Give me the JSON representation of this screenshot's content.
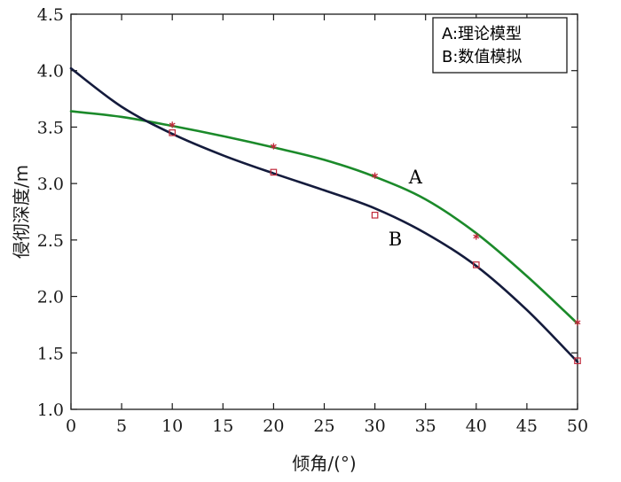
{
  "chart_data": {
    "type": "line",
    "xlabel": "倾角/(°)",
    "ylabel": "侵彻深度/m",
    "xlim": [
      0,
      50
    ],
    "ylim": [
      1.0,
      4.5
    ],
    "x_ticks": [
      "0",
      "5",
      "10",
      "15",
      "20",
      "25",
      "30",
      "35",
      "40",
      "45",
      "50"
    ],
    "y_ticks": [
      "1.0",
      "1.5",
      "2.0",
      "2.5",
      "3.0",
      "3.5",
      "4.0",
      "4.5"
    ],
    "grid": false,
    "legend_position": "top-right",
    "legend": [
      "A:理论模型",
      "B:数值模拟"
    ],
    "series": [
      {
        "name": "A",
        "color": "#1b8a2a",
        "marker": "asterisk",
        "marker_color": "#c0283a",
        "x": [
          0,
          5,
          10,
          15,
          20,
          25,
          30,
          35,
          40,
          45,
          50
        ],
        "values": [
          3.64,
          3.59,
          3.51,
          3.42,
          3.32,
          3.21,
          3.06,
          2.86,
          2.56,
          2.18,
          1.76
        ],
        "points_x": [
          10,
          20,
          30,
          40,
          50
        ],
        "points_y": [
          3.52,
          3.33,
          3.07,
          2.53,
          1.77
        ]
      },
      {
        "name": "B",
        "color": "#141b3c",
        "marker": "square",
        "marker_color": "#c0283a",
        "x": [
          0,
          5,
          10,
          15,
          20,
          25,
          30,
          35,
          40,
          45,
          50
        ],
        "values": [
          4.02,
          3.68,
          3.44,
          3.25,
          3.09,
          2.94,
          2.78,
          2.56,
          2.27,
          1.88,
          1.42
        ],
        "points_x": [
          10,
          20,
          30,
          40,
          50
        ],
        "points_y": [
          3.45,
          3.1,
          2.72,
          2.28,
          1.43
        ]
      }
    ],
    "annotations": [
      {
        "text": "A",
        "x": 34,
        "y": 3.0
      },
      {
        "text": "B",
        "x": 32,
        "y": 2.45
      }
    ]
  }
}
